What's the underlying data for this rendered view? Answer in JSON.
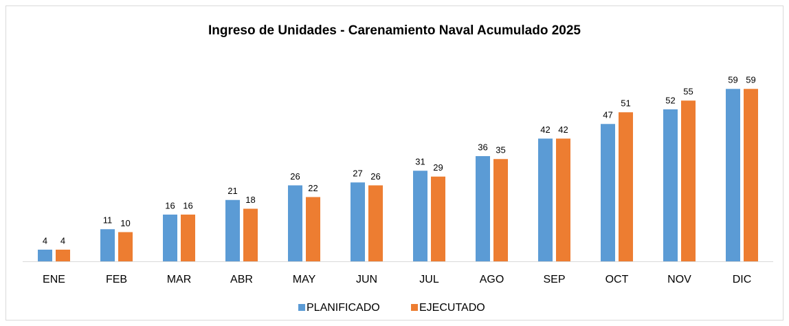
{
  "chart_data": {
    "type": "bar",
    "title": "Ingreso de Unidades - Carenamiento Naval Acumulado 2025",
    "categories": [
      "ENE",
      "FEB",
      "MAR",
      "ABR",
      "MAY",
      "JUN",
      "JUL",
      "AGO",
      "SEP",
      "OCT",
      "NOV",
      "DIC"
    ],
    "series": [
      {
        "name": "PLANIFICADO",
        "color": "#5b9bd5",
        "values": [
          4,
          11,
          16,
          21,
          26,
          27,
          31,
          36,
          42,
          47,
          52,
          59
        ]
      },
      {
        "name": "EJECUTADO",
        "color": "#ed7d31",
        "values": [
          4,
          10,
          16,
          18,
          22,
          26,
          29,
          35,
          42,
          51,
          55,
          59
        ]
      }
    ],
    "legend": "bottom"
  }
}
